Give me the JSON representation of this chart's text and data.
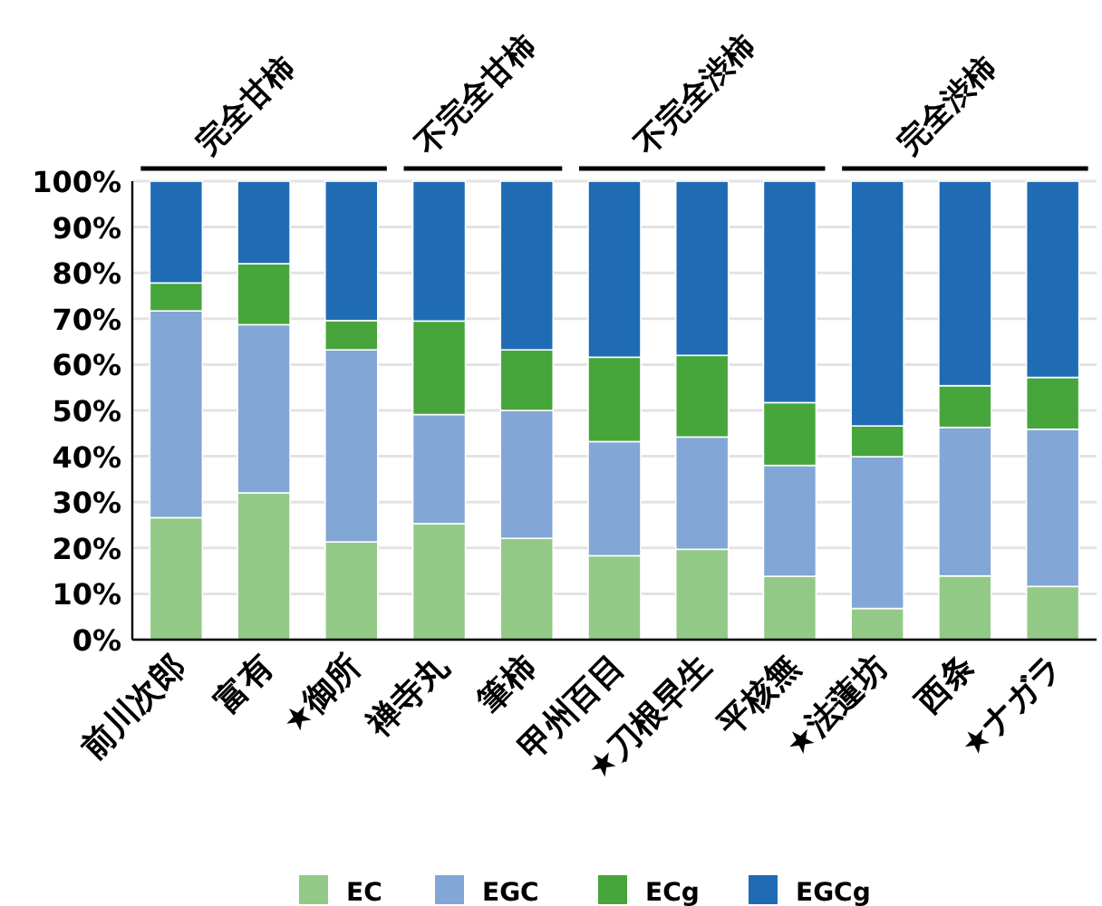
{
  "chart_data": {
    "type": "bar",
    "stacked": true,
    "categories": [
      "前川次郎",
      "富有",
      "★御所",
      "禅寺丸",
      "筆柿",
      "甲州百目",
      "★刀根早生",
      "平核無",
      "★法蓮坊",
      "西条",
      "★ナガラ"
    ],
    "series": [
      {
        "name": "EC",
        "color": "#93c987",
        "values": [
          26.6,
          32.0,
          21.3,
          25.3,
          22.1,
          18.3,
          19.7,
          13.8,
          6.8,
          13.9,
          11.6
        ]
      },
      {
        "name": "EGC",
        "color": "#82a6d6",
        "values": [
          45.1,
          36.7,
          41.9,
          23.8,
          27.9,
          24.9,
          24.5,
          24.2,
          33.1,
          32.4,
          34.3
        ]
      },
      {
        "name": "ECg",
        "color": "#46a53b",
        "values": [
          6.1,
          13.3,
          6.4,
          20.4,
          13.2,
          18.4,
          17.8,
          13.7,
          6.7,
          9.1,
          11.3
        ]
      },
      {
        "name": "EGCg",
        "color": "#1f6cb5",
        "values": [
          22.2,
          18.0,
          30.4,
          30.5,
          36.8,
          38.4,
          38.0,
          48.3,
          53.4,
          44.6,
          42.8
        ]
      }
    ],
    "ylim": [
      0,
      100
    ],
    "yticks": [
      {
        "value": 0,
        "label": "0%"
      },
      {
        "value": 10,
        "label": "10%"
      },
      {
        "value": 20,
        "label": "20%"
      },
      {
        "value": 30,
        "label": "30%"
      },
      {
        "value": 40,
        "label": "40%"
      },
      {
        "value": 50,
        "label": "50%"
      },
      {
        "value": 60,
        "label": "60%"
      },
      {
        "value": 70,
        "label": "70%"
      },
      {
        "value": 80,
        "label": "80%"
      },
      {
        "value": 90,
        "label": "90%"
      },
      {
        "value": 100,
        "label": "100%"
      }
    ],
    "grid": "y",
    "legend": "bottom",
    "annotations": [
      "完全甘柿",
      "不完全甘柿",
      "不完全渋柿",
      "完全渋柿"
    ]
  }
}
